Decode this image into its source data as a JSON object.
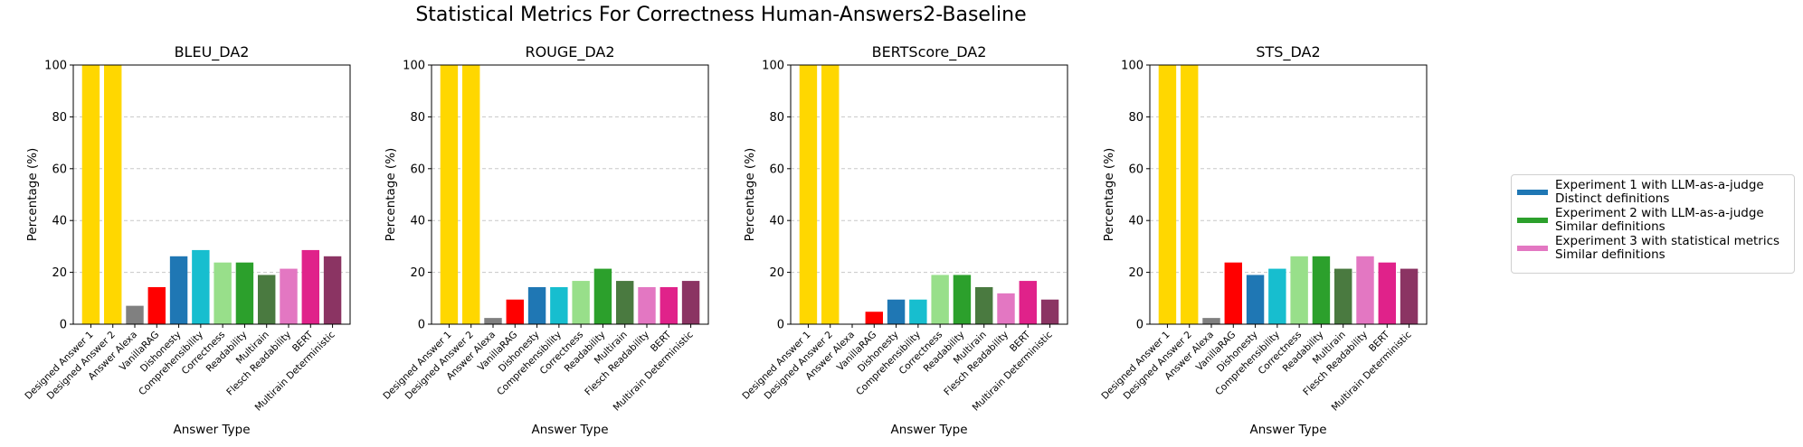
{
  "figure": {
    "title": "Statistical Metrics For Correctness Human-Answers2-Baseline"
  },
  "legend": {
    "items": [
      {
        "label": "Experiment 1 with LLM-as-a-judge\nDistinct definitions",
        "color": "#1f77b4"
      },
      {
        "label": "Experiment 2 with LLM-as-a-judge\nSimilar definitions",
        "color": "#2ca02c"
      },
      {
        "label": "Experiment 3 with statistical metrics\nSimilar definitions",
        "color": "#e377c2"
      }
    ]
  },
  "chart_data": [
    {
      "type": "bar",
      "title": "BLEU_DA2",
      "xlabel": "Answer Type",
      "ylabel": "Percentage (%)",
      "ylim": [
        0,
        100
      ],
      "yticks": [
        0,
        20,
        40,
        60,
        80,
        100
      ],
      "grid": "y-dashed",
      "categories": [
        "Designed Answer 1",
        "Designed Answer 2",
        "Answer Alexa",
        "VanillaRAG",
        "Dishonesty",
        "Comprehensibility",
        "Correctness",
        "Readability",
        "Multirain",
        "Flesch Readability",
        "BERT",
        "Multirain Deterministic"
      ],
      "values": [
        100,
        100,
        7.1,
        14.3,
        26.2,
        28.6,
        23.8,
        23.8,
        19.0,
        21.4,
        28.6,
        26.2
      ],
      "colors": [
        "#ffd700",
        "#ffd700",
        "#808080",
        "#ff0000",
        "#1f77b4",
        "#17becf",
        "#98df8a",
        "#2ca02c",
        "#4a7a40",
        "#e377c2",
        "#e0228a",
        "#8b3463"
      ]
    },
    {
      "type": "bar",
      "title": "ROUGE_DA2",
      "xlabel": "Answer Type",
      "ylabel": "Percentage (%)",
      "ylim": [
        0,
        100
      ],
      "yticks": [
        0,
        20,
        40,
        60,
        80,
        100
      ],
      "grid": "y-dashed",
      "categories": [
        "Designed Answer 1",
        "Designed Answer 2",
        "Answer Alexa",
        "VanillaRAG",
        "Dishonesty",
        "Comprehensibility",
        "Correctness",
        "Readability",
        "Multirain",
        "Flesch Readability",
        "BERT",
        "Multirain Deterministic"
      ],
      "values": [
        100,
        100,
        2.4,
        9.5,
        14.3,
        14.3,
        16.7,
        21.4,
        16.7,
        14.3,
        14.3,
        16.7
      ],
      "colors": [
        "#ffd700",
        "#ffd700",
        "#808080",
        "#ff0000",
        "#1f77b4",
        "#17becf",
        "#98df8a",
        "#2ca02c",
        "#4a7a40",
        "#e377c2",
        "#e0228a",
        "#8b3463"
      ]
    },
    {
      "type": "bar",
      "title": "BERTScore_DA2",
      "xlabel": "Answer Type",
      "ylabel": "Percentage (%)",
      "ylim": [
        0,
        100
      ],
      "yticks": [
        0,
        20,
        40,
        60,
        80,
        100
      ],
      "grid": "y-dashed",
      "categories": [
        "Designed Answer 1",
        "Designed Answer 2",
        "Answer Alexa",
        "VanillaRAG",
        "Dishonesty",
        "Comprehensibility",
        "Correctness",
        "Readability",
        "Multirain",
        "Flesch Readability",
        "BERT",
        "Multirain Deterministic"
      ],
      "values": [
        100,
        100,
        0,
        4.8,
        9.5,
        9.5,
        19.0,
        19.0,
        14.3,
        11.9,
        16.7,
        9.5
      ],
      "colors": [
        "#ffd700",
        "#ffd700",
        "#808080",
        "#ff0000",
        "#1f77b4",
        "#17becf",
        "#98df8a",
        "#2ca02c",
        "#4a7a40",
        "#e377c2",
        "#e0228a",
        "#8b3463"
      ]
    },
    {
      "type": "bar",
      "title": "STS_DA2",
      "xlabel": "Answer Type",
      "ylabel": "Percentage (%)",
      "ylim": [
        0,
        100
      ],
      "yticks": [
        0,
        20,
        40,
        60,
        80,
        100
      ],
      "grid": "y-dashed",
      "categories": [
        "Designed Answer 1",
        "Designed Answer 2",
        "Answer Alexa",
        "VanillaRAG",
        "Dishonesty",
        "Comprehensibility",
        "Correctness",
        "Readability",
        "Multirain",
        "Flesch Readability",
        "BERT",
        "Multirain Deterministic"
      ],
      "values": [
        100,
        100,
        2.4,
        23.8,
        19.0,
        21.4,
        26.2,
        26.2,
        21.4,
        26.2,
        23.8,
        21.4
      ],
      "colors": [
        "#ffd700",
        "#ffd700",
        "#808080",
        "#ff0000",
        "#1f77b4",
        "#17becf",
        "#98df8a",
        "#2ca02c",
        "#4a7a40",
        "#e377c2",
        "#e0228a",
        "#8b3463"
      ]
    }
  ]
}
